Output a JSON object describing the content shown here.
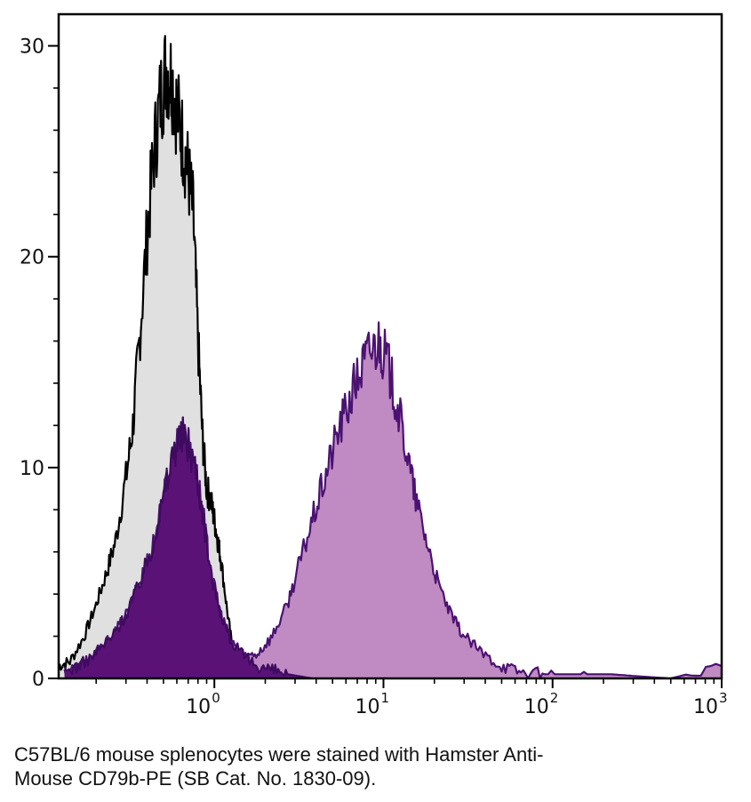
{
  "chart_data": {
    "type": "area",
    "title": "",
    "xlabel": "",
    "ylabel": "",
    "x_scale": "log",
    "xlim": [
      0.12,
      1000
    ],
    "ylim": [
      0,
      31.5
    ],
    "x_ticks": [
      {
        "value": 1,
        "base": "10",
        "exp": "0"
      },
      {
        "value": 10,
        "base": "10",
        "exp": "1"
      },
      {
        "value": 100,
        "base": "10",
        "exp": "2"
      },
      {
        "value": 1000,
        "base": "10",
        "exp": "3"
      }
    ],
    "y_ticks": [
      0,
      10,
      20,
      30
    ],
    "grid": false,
    "legend": "none",
    "series": [
      {
        "role": "isotype-control",
        "fill": "#e0e0e0",
        "stroke": "#000000",
        "x": [
          0.12,
          0.14,
          0.17,
          0.2,
          0.23,
          0.26,
          0.3,
          0.33,
          0.36,
          0.4,
          0.44,
          0.48,
          0.52,
          0.56,
          0.6,
          0.65,
          0.7,
          0.75,
          0.8,
          0.85,
          0.9,
          0.95,
          1.0,
          1.05,
          1.1,
          1.2,
          1.3,
          1.5
        ],
        "values": [
          0.6,
          0.8,
          2.0,
          3.5,
          5.0,
          6.5,
          9.5,
          12.0,
          16.0,
          21.0,
          25.0,
          27.5,
          29.0,
          28.5,
          27.0,
          25.5,
          24.0,
          22.0,
          16.0,
          11.5,
          9.0,
          8.5,
          7.5,
          6.5,
          5.5,
          3.0,
          1.0,
          0.2
        ]
      },
      {
        "role": "anti-CD79b-PE",
        "fill": "#c08ac2",
        "stroke": "#4b1272",
        "x": [
          0.13,
          0.16,
          0.2,
          0.25,
          0.3,
          0.36,
          0.42,
          0.5,
          0.58,
          0.66,
          0.75,
          0.85,
          0.95,
          1.1,
          1.25,
          1.5,
          1.8,
          2.2,
          2.7,
          3.2,
          3.8,
          4.5,
          5.3,
          6.2,
          7.2,
          8.3,
          9.5,
          10.5,
          12.0,
          13.5,
          15.5,
          18.0,
          21.0,
          25.0,
          30.0,
          38.0,
          50.0,
          65.0,
          90.0,
          140.0,
          220.0,
          320.0,
          500.0,
          990.0
        ],
        "values": [
          0.3,
          0.6,
          1.2,
          2.0,
          3.0,
          4.5,
          6.0,
          8.5,
          11.0,
          11.5,
          10.5,
          8.0,
          5.0,
          3.0,
          1.8,
          1.0,
          1.2,
          2.0,
          3.5,
          5.5,
          7.5,
          9.5,
          11.5,
          13.0,
          14.5,
          15.5,
          16.0,
          15.0,
          13.0,
          11.0,
          8.5,
          6.5,
          4.5,
          3.0,
          2.0,
          1.2,
          0.6,
          0.3,
          0.2,
          0.2,
          0.2,
          0.1,
          0.0,
          0.6
        ]
      },
      {
        "role": "negative-population",
        "fill": "#5b1277",
        "stroke": "#3e0b5e",
        "x": [
          0.13,
          0.16,
          0.2,
          0.25,
          0.3,
          0.36,
          0.42,
          0.5,
          0.58,
          0.66,
          0.75,
          0.85,
          0.95,
          1.1,
          1.25,
          1.5,
          1.8,
          2.2,
          2.7,
          3.2,
          3.8
        ],
        "values": [
          0.3,
          0.6,
          1.2,
          2.0,
          3.0,
          4.5,
          6.0,
          8.5,
          11.0,
          11.5,
          10.5,
          8.0,
          5.0,
          3.0,
          1.8,
          1.0,
          0.6,
          0.4,
          0.2,
          0.1,
          0.0
        ]
      }
    ]
  },
  "caption": {
    "text": "C57BL/6 mouse splenocytes were stained with Hamster Anti-\nMouse CD79b-PE (SB Cat. No. 1830-09)."
  }
}
